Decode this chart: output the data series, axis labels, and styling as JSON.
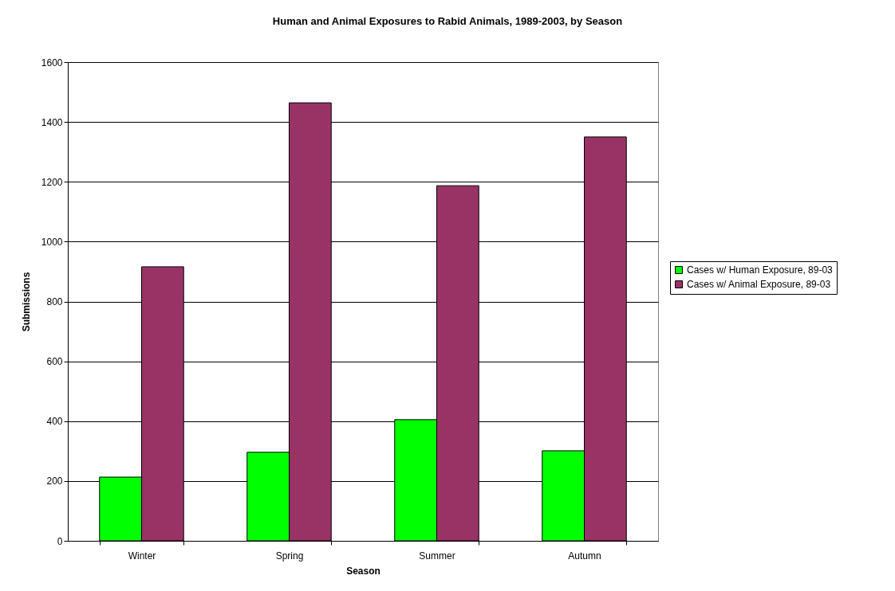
{
  "chart_data": {
    "type": "bar",
    "title": "Human and Animal Exposures to Rabid Animals, 1989-2003, by Season",
    "xlabel": "Season",
    "ylabel": "Submissions",
    "categories": [
      "Winter",
      "Spring",
      "Summer",
      "Autumn"
    ],
    "series": [
      {
        "name": "Cases w/ Human Exposure, 89-03",
        "color": "#00ff00",
        "values": [
          213,
          296,
          405,
          301
        ]
      },
      {
        "name": "Cases w/ Animal Exposure, 89-03",
        "color": "#993366",
        "values": [
          916,
          1464,
          1187,
          1350
        ]
      }
    ],
    "ylim": [
      0,
      1600
    ],
    "yticks": [
      0,
      200,
      400,
      600,
      800,
      1000,
      1200,
      1400,
      1600
    ],
    "grid": "y",
    "legend": "right"
  }
}
